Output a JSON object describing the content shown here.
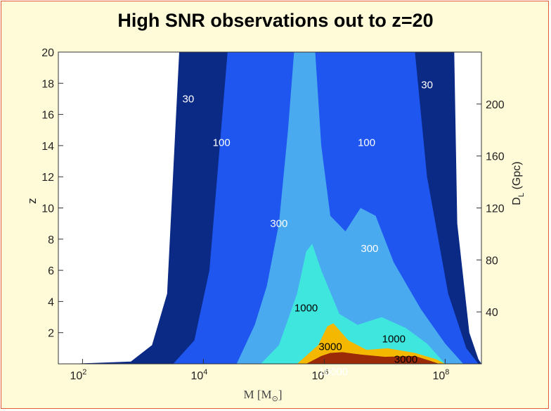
{
  "title": "High SNR observations out to z=20",
  "chart_data": {
    "type": "contour",
    "xlabel": "M [M",
    "xlabel_sub": "⊙",
    "xlabel_close": "]",
    "ylabel": "z",
    "y2label": "D",
    "y2label_sub": "L",
    "y2label_unit": " (Gpc)",
    "xscale": "log",
    "xlim": [
      1.6,
      8.6
    ],
    "ylim": [
      0,
      20
    ],
    "y2lim": [
      0,
      240
    ],
    "xticks": [
      {
        "base": "10",
        "exp": "2",
        "pos": 2
      },
      {
        "base": "10",
        "exp": "4",
        "pos": 4
      },
      {
        "base": "10",
        "exp": "6",
        "pos": 6
      },
      {
        "base": "10",
        "exp": "8",
        "pos": 8
      }
    ],
    "yticks": [
      "2",
      "4",
      "6",
      "8",
      "10",
      "12",
      "14",
      "16",
      "18",
      "20"
    ],
    "y2ticks": [
      "40",
      "80",
      "120",
      "160",
      "200"
    ],
    "levels": [
      {
        "label": "30",
        "color": "#0b2a86",
        "left": [
          [
            1.8,
            0
          ],
          [
            2.8,
            0.15
          ],
          [
            3.15,
            1.2
          ],
          [
            3.4,
            4.5
          ],
          [
            3.6,
            20
          ]
        ],
        "right": [
          [
            8.15,
            20
          ],
          [
            8.2,
            9
          ],
          [
            8.4,
            2
          ],
          [
            8.55,
            0.3
          ],
          [
            8.6,
            0
          ]
        ]
      },
      {
        "label": "100",
        "color": "#1e56ef",
        "left": [
          [
            3.5,
            0
          ],
          [
            3.85,
            1.5
          ],
          [
            4.1,
            6
          ],
          [
            4.4,
            20
          ]
        ],
        "right": [
          [
            7.5,
            20
          ],
          [
            7.7,
            12
          ],
          [
            8.05,
            4.5
          ],
          [
            8.35,
            1
          ],
          [
            8.55,
            0
          ]
        ]
      },
      {
        "label": "300",
        "color": "#4aaaf0",
        "left": [
          [
            4.55,
            0
          ],
          [
            4.85,
            2.5
          ],
          [
            5.05,
            5
          ],
          [
            5.25,
            9
          ],
          [
            5.4,
            15
          ],
          [
            5.5,
            20
          ]
        ],
        "right": [
          [
            5.85,
            20
          ],
          [
            5.95,
            14
          ],
          [
            6.1,
            9.5
          ],
          [
            6.35,
            8.5
          ],
          [
            6.6,
            10
          ],
          [
            6.85,
            9.5
          ],
          [
            7.15,
            6.5
          ],
          [
            7.6,
            3.5
          ],
          [
            8.0,
            1.3
          ],
          [
            8.3,
            0
          ]
        ]
      },
      {
        "label": "1000",
        "color": "#3ee6de",
        "left": [
          [
            4.95,
            0
          ],
          [
            5.25,
            1.2
          ],
          [
            5.55,
            4.5
          ],
          [
            5.7,
            7.2
          ]
        ],
        "right": [
          [
            5.8,
            7.7
          ],
          [
            5.95,
            6
          ],
          [
            6.25,
            3.2
          ],
          [
            6.55,
            2.5
          ],
          [
            6.95,
            3
          ],
          [
            7.35,
            2.3
          ],
          [
            7.7,
            1.3
          ],
          [
            8.0,
            0
          ]
        ]
      },
      {
        "label": "3000",
        "color": "#f5b800",
        "left": [
          [
            5.55,
            0
          ],
          [
            5.9,
            1.2
          ],
          [
            6.05,
            2.4
          ]
        ],
        "right": [
          [
            6.15,
            2.6
          ],
          [
            6.4,
            1.5
          ],
          [
            6.7,
            0.9
          ],
          [
            7.05,
            1
          ],
          [
            7.5,
            0.7
          ],
          [
            7.85,
            0.3
          ],
          [
            8.0,
            0
          ]
        ]
      },
      {
        "label": "10000",
        "color": "#9b2a08",
        "left": [
          [
            5.7,
            0
          ],
          [
            5.95,
            0.5
          ],
          [
            6.1,
            0.7
          ]
        ],
        "right": [
          [
            6.3,
            0.75
          ],
          [
            6.6,
            0.6
          ],
          [
            7.0,
            0.45
          ],
          [
            7.5,
            0.5
          ],
          [
            7.75,
            0.2
          ],
          [
            7.9,
            0
          ]
        ]
      }
    ],
    "labels": [
      {
        "text": "30",
        "x": 3.75,
        "y": 17.0,
        "color": "#ffffff"
      },
      {
        "text": "30",
        "x": 7.7,
        "y": 17.9,
        "color": "#ffffff"
      },
      {
        "text": "100",
        "x": 4.3,
        "y": 14.2,
        "color": "#ffffff"
      },
      {
        "text": "100",
        "x": 6.7,
        "y": 14.2,
        "color": "#ffffff"
      },
      {
        "text": "300",
        "x": 5.25,
        "y": 9.0,
        "color": "#ffffff"
      },
      {
        "text": "300",
        "x": 6.75,
        "y": 7.4,
        "color": "#ffffff"
      },
      {
        "text": "1000",
        "x": 5.7,
        "y": 3.6,
        "color": "#000000"
      },
      {
        "text": "1000",
        "x": 7.15,
        "y": 1.6,
        "color": "#000000"
      },
      {
        "text": "3000",
        "x": 6.1,
        "y": 1.1,
        "color": "#000000"
      },
      {
        "text": "3000",
        "x": 7.35,
        "y": 0.3,
        "color": "#000000"
      },
      {
        "text": "10000",
        "x": 6.15,
        "y": -0.5,
        "color": "#ffffff"
      }
    ]
  }
}
